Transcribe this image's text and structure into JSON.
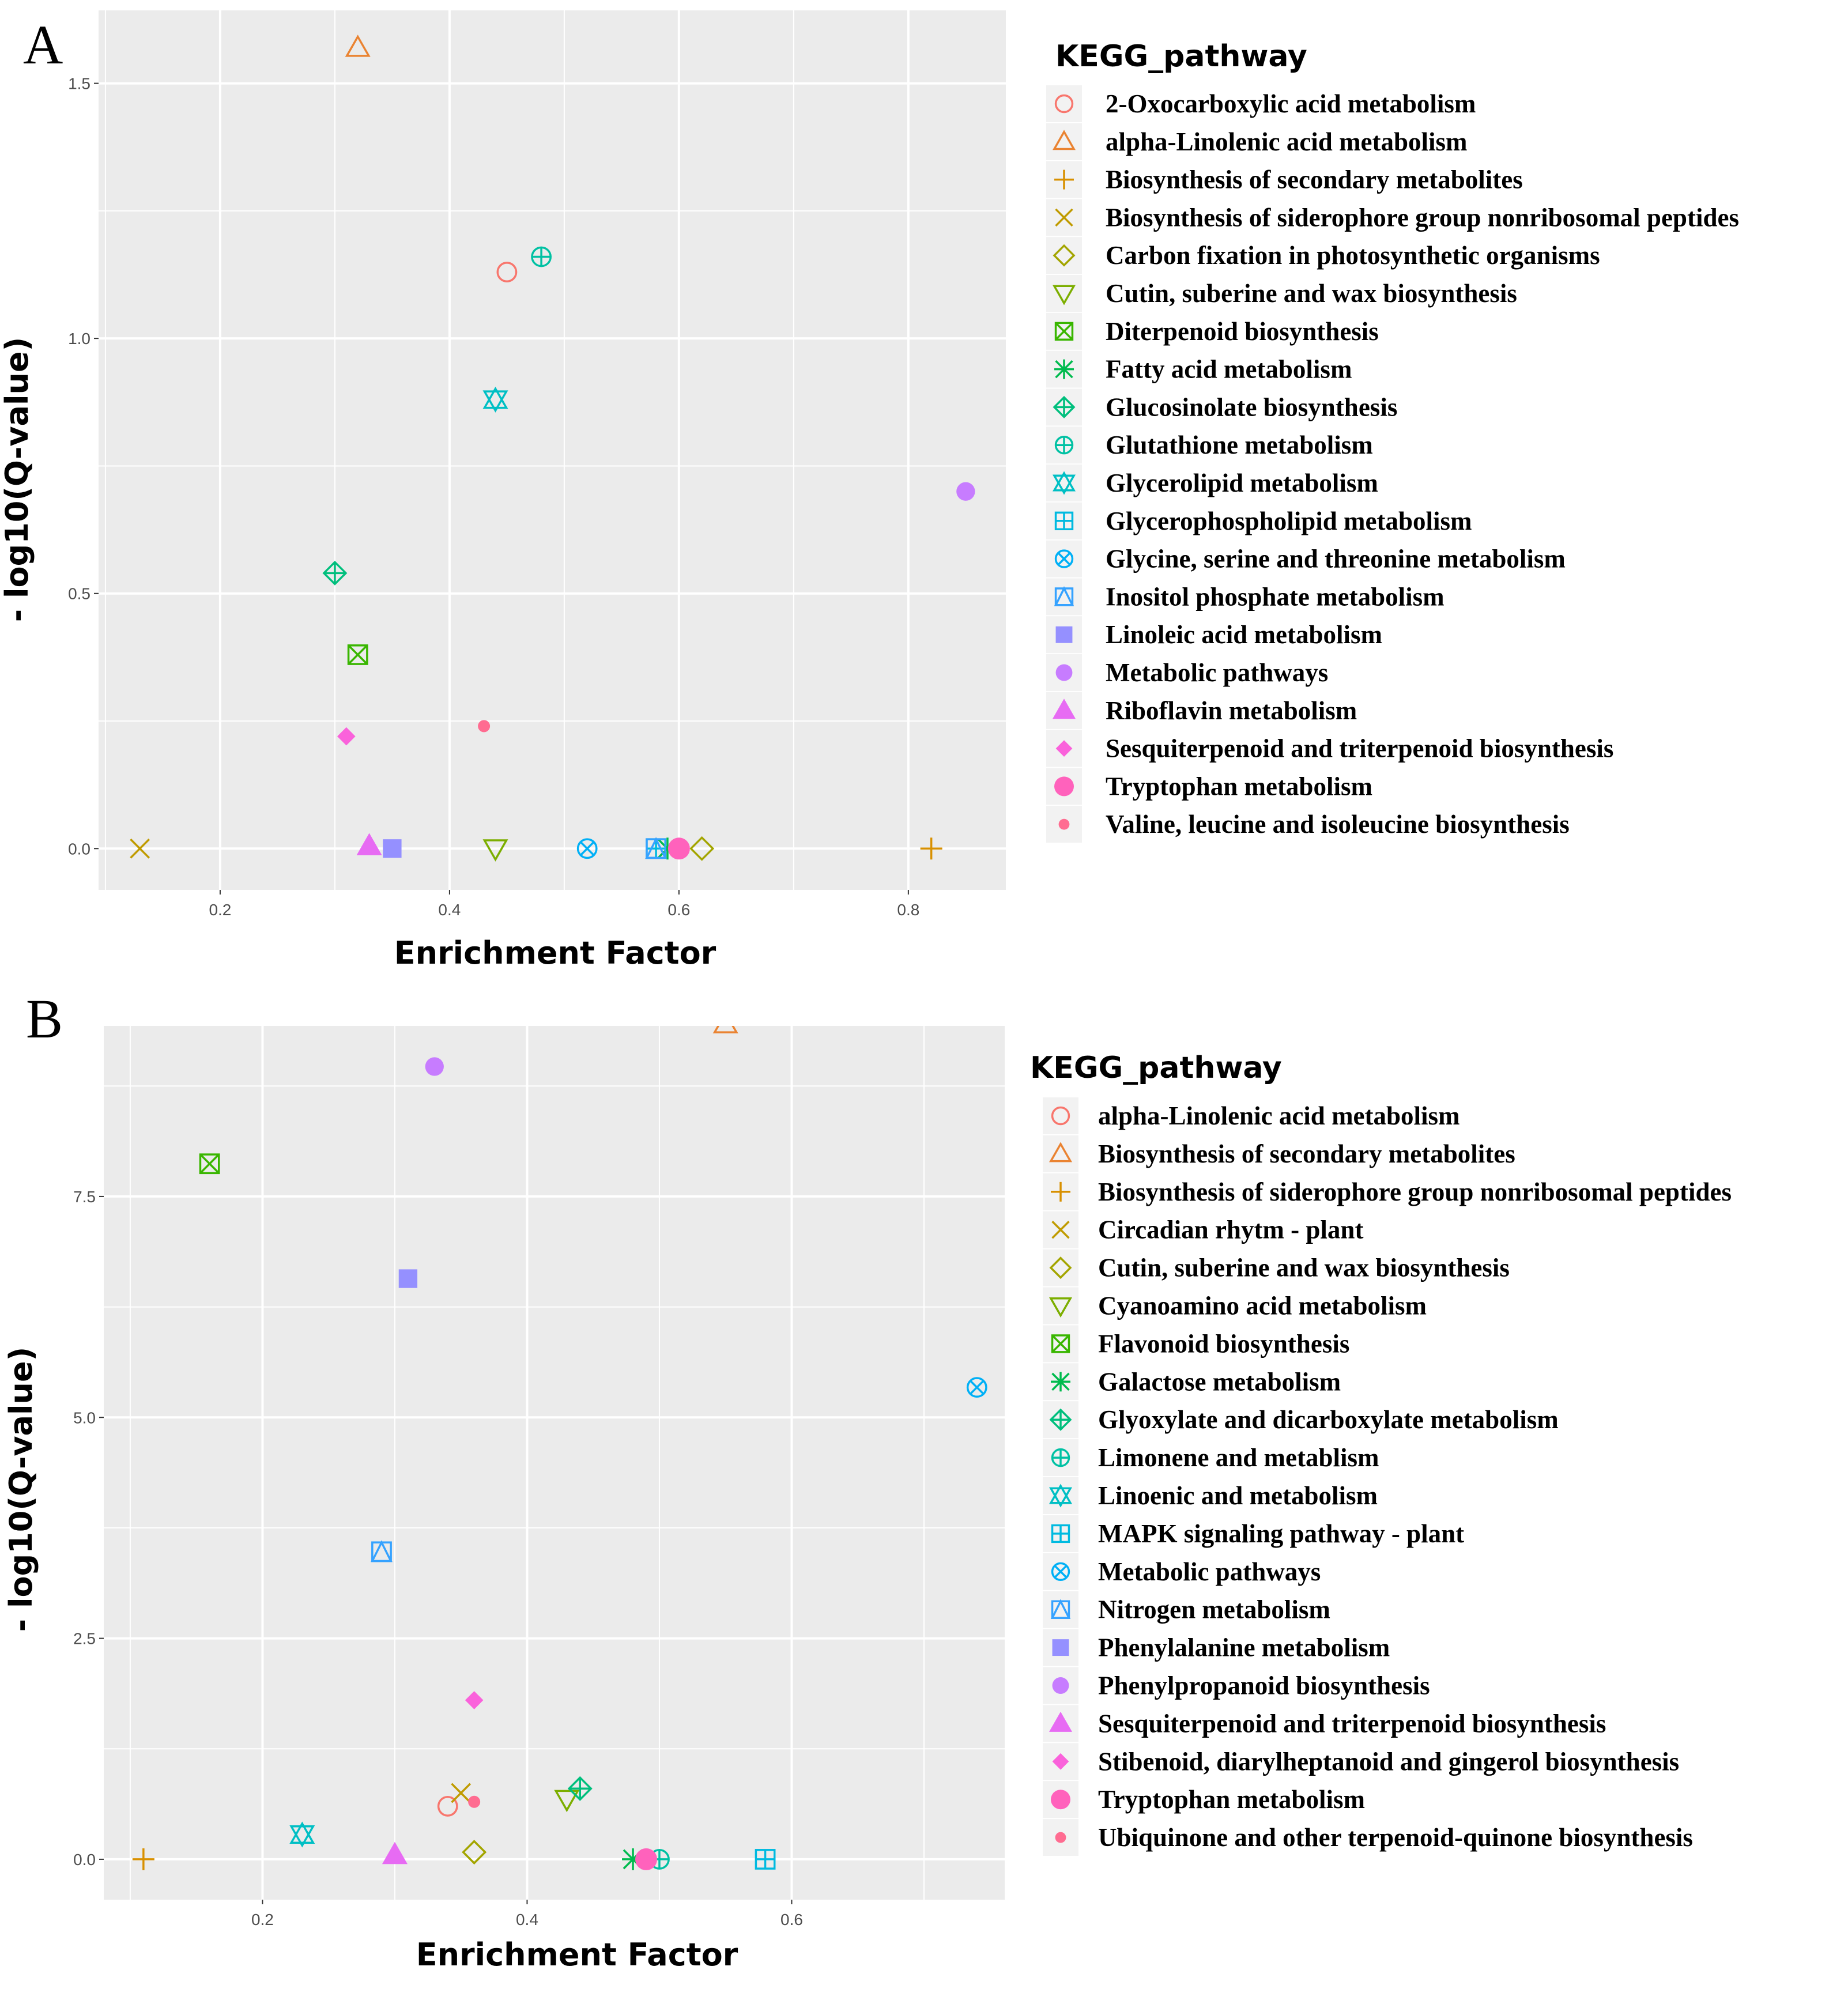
{
  "colors": [
    "#F8766D",
    "#EA8331",
    "#D89000",
    "#C09B00",
    "#A3A500",
    "#7CAE00",
    "#39B600",
    "#00BB4E",
    "#00BF7D",
    "#00C1A3",
    "#00BFC4",
    "#00BAE0",
    "#00B0F6",
    "#35A2FF",
    "#9590FF",
    "#C77CFF",
    "#E76BF3",
    "#FA62DB",
    "#FF62BC",
    "#FF6C91"
  ],
  "shapes": [
    "circle-open",
    "triangle-open",
    "plus",
    "cross",
    "diamond-open",
    "triangle-down-open",
    "square-cross",
    "asterisk",
    "diamond-plus",
    "circle-plus",
    "star-of-david",
    "square-plus",
    "circle-cross",
    "square-triangle",
    "square-filled",
    "circle-filled",
    "triangle-filled",
    "diamond-filled",
    "circle-filled-large",
    "circle-filled-small"
  ],
  "chart_data": [
    {
      "type": "scatter",
      "panel_label": "A",
      "xlabel": "Enrichment Factor",
      "ylabel": "- log10(Q-value)",
      "xlim": [
        0.094,
        0.885
      ],
      "ylim": [
        -0.081,
        1.643
      ],
      "xticks": [
        "0.2",
        "0.4",
        "0.6",
        "0.8"
      ],
      "yticks": [
        "0.0",
        "0.5",
        "1.0",
        "1.5"
      ],
      "grid": true,
      "legend_title": "KEGG_pathway",
      "legend_position": "right",
      "series": [
        {
          "name": "2-Oxocarboxylic acid metabolism",
          "x": 0.45,
          "y": 1.13
        },
        {
          "name": "alpha-Linolenic acid metabolism",
          "x": 0.32,
          "y": 1.57
        },
        {
          "name": "Biosynthesis of secondary metabolites",
          "x": 0.82,
          "y": 0.0
        },
        {
          "name": "Biosynthesis of siderophore group nonribosomal peptides",
          "x": 0.13,
          "y": 0.0
        },
        {
          "name": "Carbon fixation in photosynthetic organisms",
          "x": 0.62,
          "y": 0.0
        },
        {
          "name": "Cutin, suberine and wax biosynthesis",
          "x": 0.44,
          "y": 0.0
        },
        {
          "name": "Diterpenoid biosynthesis",
          "x": 0.32,
          "y": 0.38
        },
        {
          "name": "Fatty acid metabolism",
          "x": 0.59,
          "y": 0.0
        },
        {
          "name": "Glucosinolate biosynthesis",
          "x": 0.3,
          "y": 0.54
        },
        {
          "name": "Glutathione metabolism",
          "x": 0.48,
          "y": 1.16
        },
        {
          "name": "Glycerolipid metabolism",
          "x": 0.44,
          "y": 0.88
        },
        {
          "name": "Glycerophospholipid metabolism",
          "x": 0.58,
          "y": 0.0
        },
        {
          "name": "Glycine, serine and threonine metabolism",
          "x": 0.52,
          "y": 0.0
        },
        {
          "name": "Inositol phosphate metabolism",
          "x": 0.58,
          "y": 0.0
        },
        {
          "name": "Linoleic acid metabolism",
          "x": 0.35,
          "y": 0.0
        },
        {
          "name": "Metabolic pathways",
          "x": 0.85,
          "y": 0.7
        },
        {
          "name": "Riboflavin metabolism",
          "x": 0.33,
          "y": 0.005
        },
        {
          "name": "Sesquiterpenoid and triterpenoid biosynthesis",
          "x": 0.31,
          "y": 0.22
        },
        {
          "name": "Tryptophan metabolism",
          "x": 0.6,
          "y": 0.0
        },
        {
          "name": "Valine, leucine and isoleucine biosynthesis",
          "x": 0.43,
          "y": 0.24
        }
      ]
    },
    {
      "type": "scatter",
      "panel_label": "B",
      "xlabel": "Enrichment Factor",
      "ylabel": "- log10(Q-value)",
      "xlim": [
        0.08,
        0.761
      ],
      "ylim": [
        -0.457,
        9.43
      ],
      "xticks": [
        "0.2",
        "0.4",
        "0.6"
      ],
      "yticks": [
        "0.0",
        "2.5",
        "5.0",
        "7.5"
      ],
      "grid": true,
      "legend_title": "KEGG_pathway",
      "legend_position": "right",
      "series": [
        {
          "name": "alpha-Linolenic acid metabolism",
          "x": 0.34,
          "y": 0.6
        },
        {
          "name": "Biosynthesis of secondary metabolites",
          "x": 0.55,
          "y": 9.45
        },
        {
          "name": "Biosynthesis of siderophore group nonribosomal peptides",
          "x": 0.11,
          "y": 0.0
        },
        {
          "name": "Circadian rhytm - plant",
          "x": 0.35,
          "y": 0.75
        },
        {
          "name": "Cutin, suberine and wax biosynthesis",
          "x": 0.36,
          "y": 0.08
        },
        {
          "name": "Cyanoamino acid metabolism",
          "x": 0.43,
          "y": 0.68
        },
        {
          "name": "Flavonoid biosynthesis",
          "x": 0.16,
          "y": 7.87
        },
        {
          "name": "Galactose metabolism",
          "x": 0.48,
          "y": 0.0
        },
        {
          "name": "Glyoxylate and dicarboxylate metabolism",
          "x": 0.44,
          "y": 0.8
        },
        {
          "name": "Limonene and metablism",
          "x": 0.5,
          "y": 0.0
        },
        {
          "name": "Linoenic and metabolism",
          "x": 0.23,
          "y": 0.28
        },
        {
          "name": "MAPK signaling pathway - plant",
          "x": 0.58,
          "y": 0.0
        },
        {
          "name": "Metabolic pathways",
          "x": 0.74,
          "y": 5.34
        },
        {
          "name": "Nitrogen metabolism",
          "x": 0.29,
          "y": 3.48
        },
        {
          "name": "Phenylalanine metabolism",
          "x": 0.31,
          "y": 6.57
        },
        {
          "name": "Phenylpropanoid biosynthesis",
          "x": 0.33,
          "y": 8.97
        },
        {
          "name": "Sesquiterpenoid and triterpenoid biosynthesis",
          "x": 0.3,
          "y": 0.05
        },
        {
          "name": "Stibenoid, diarylheptanoid and gingerol biosynthesis",
          "x": 0.36,
          "y": 1.8
        },
        {
          "name": "Tryptophan metabolism",
          "x": 0.49,
          "y": 0.0
        },
        {
          "name": "Ubiquinone and other terpenoid-quinone biosynthesis",
          "x": 0.36,
          "y": 0.65
        }
      ]
    }
  ]
}
